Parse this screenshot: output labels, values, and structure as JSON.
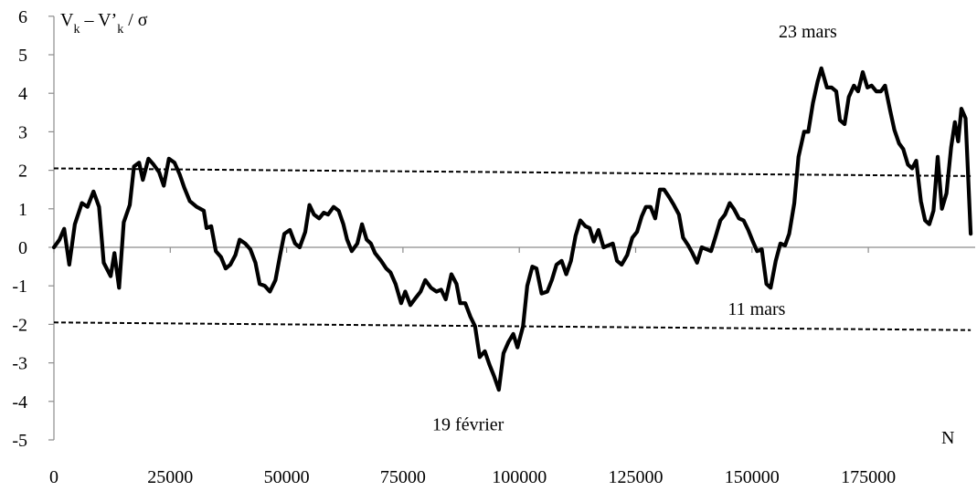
{
  "chart_data": {
    "type": "line",
    "title": "",
    "ylabel": {
      "main": "V",
      "sub1": "k",
      "mid": " – V’",
      "sub2": "k",
      "tail": " / σ"
    },
    "xlabel": "N",
    "xlim": [
      0,
      195000
    ],
    "ylim": [
      -5,
      6
    ],
    "xticks": [
      0,
      25000,
      50000,
      75000,
      100000,
      125000,
      150000,
      175000
    ],
    "yticks": [
      6,
      5,
      4,
      3,
      2,
      1,
      0,
      -1,
      -2,
      -3,
      -4,
      -5
    ],
    "grid": false,
    "series": [
      {
        "style": "solid",
        "color": "#000000",
        "points": [
          [
            0,
            0.0
          ],
          [
            1200,
            0.2
          ],
          [
            2200,
            0.48
          ],
          [
            3300,
            -0.45
          ],
          [
            4500,
            0.6
          ],
          [
            6000,
            1.15
          ],
          [
            7200,
            1.05
          ],
          [
            8500,
            1.45
          ],
          [
            9700,
            1.05
          ],
          [
            10700,
            -0.4
          ],
          [
            12200,
            -0.75
          ],
          [
            13000,
            -0.15
          ],
          [
            14000,
            -1.05
          ],
          [
            15000,
            0.65
          ],
          [
            16300,
            1.1
          ],
          [
            17200,
            2.1
          ],
          [
            18300,
            2.2
          ],
          [
            19100,
            1.75
          ],
          [
            20300,
            2.3
          ],
          [
            21400,
            2.15
          ],
          [
            22600,
            1.95
          ],
          [
            23600,
            1.6
          ],
          [
            24700,
            2.3
          ],
          [
            25900,
            2.2
          ],
          [
            27000,
            1.9
          ],
          [
            28000,
            1.55
          ],
          [
            29200,
            1.2
          ],
          [
            30700,
            1.05
          ],
          [
            32200,
            0.95
          ],
          [
            32800,
            0.5
          ],
          [
            33800,
            0.55
          ],
          [
            34800,
            -0.1
          ],
          [
            35900,
            -0.25
          ],
          [
            36900,
            -0.55
          ],
          [
            37900,
            -0.45
          ],
          [
            39000,
            -0.2
          ],
          [
            39900,
            0.2
          ],
          [
            41100,
            0.1
          ],
          [
            42200,
            -0.05
          ],
          [
            43300,
            -0.4
          ],
          [
            44200,
            -0.95
          ],
          [
            45300,
            -1.0
          ],
          [
            46400,
            -1.15
          ],
          [
            47600,
            -0.85
          ],
          [
            48600,
            -0.2
          ],
          [
            49500,
            0.35
          ],
          [
            50700,
            0.45
          ],
          [
            51800,
            0.1
          ],
          [
            52800,
            0.0
          ],
          [
            54000,
            0.4
          ],
          [
            54900,
            1.1
          ],
          [
            55900,
            0.85
          ],
          [
            57000,
            0.75
          ],
          [
            58000,
            0.9
          ],
          [
            58900,
            0.85
          ],
          [
            60100,
            1.05
          ],
          [
            61200,
            0.95
          ],
          [
            62200,
            0.6
          ],
          [
            63000,
            0.2
          ],
          [
            64000,
            -0.1
          ],
          [
            65200,
            0.1
          ],
          [
            66200,
            0.6
          ],
          [
            67200,
            0.2
          ],
          [
            68100,
            0.1
          ],
          [
            69000,
            -0.15
          ],
          [
            70300,
            -0.35
          ],
          [
            71400,
            -0.55
          ],
          [
            72300,
            -0.65
          ],
          [
            73400,
            -0.95
          ],
          [
            74600,
            -1.45
          ],
          [
            75500,
            -1.15
          ],
          [
            76600,
            -1.5
          ],
          [
            77800,
            -1.3
          ],
          [
            78800,
            -1.15
          ],
          [
            79800,
            -0.85
          ],
          [
            81000,
            -1.05
          ],
          [
            82200,
            -1.15
          ],
          [
            83200,
            -1.1
          ],
          [
            84200,
            -1.35
          ],
          [
            85400,
            -0.7
          ],
          [
            86500,
            -0.95
          ],
          [
            87300,
            -1.45
          ],
          [
            88400,
            -1.45
          ],
          [
            89500,
            -1.8
          ],
          [
            90500,
            -2.05
          ],
          [
            91500,
            -2.85
          ],
          [
            92600,
            -2.7
          ],
          [
            93600,
            -3.05
          ],
          [
            94600,
            -3.35
          ],
          [
            95600,
            -3.7
          ],
          [
            96600,
            -2.75
          ],
          [
            97700,
            -2.45
          ],
          [
            98700,
            -2.25
          ],
          [
            99600,
            -2.6
          ],
          [
            100800,
            -2.05
          ],
          [
            101700,
            -1.0
          ],
          [
            102800,
            -0.5
          ],
          [
            103700,
            -0.55
          ],
          [
            104800,
            -1.2
          ],
          [
            106000,
            -1.15
          ],
          [
            107000,
            -0.85
          ],
          [
            108000,
            -0.45
          ],
          [
            109100,
            -0.35
          ],
          [
            110100,
            -0.7
          ],
          [
            111100,
            -0.35
          ],
          [
            112100,
            0.3
          ],
          [
            113100,
            0.7
          ],
          [
            114200,
            0.55
          ],
          [
            115100,
            0.5
          ],
          [
            116000,
            0.15
          ],
          [
            117000,
            0.45
          ],
          [
            118100,
            0.0
          ],
          [
            119100,
            0.05
          ],
          [
            120100,
            0.1
          ],
          [
            121000,
            -0.35
          ],
          [
            122000,
            -0.45
          ],
          [
            123200,
            -0.2
          ],
          [
            124300,
            0.25
          ],
          [
            125300,
            0.4
          ],
          [
            126300,
            0.8
          ],
          [
            127200,
            1.05
          ],
          [
            128200,
            1.05
          ],
          [
            129200,
            0.75
          ],
          [
            130200,
            1.5
          ],
          [
            131100,
            1.5
          ],
          [
            132200,
            1.3
          ],
          [
            133200,
            1.1
          ],
          [
            134300,
            0.85
          ],
          [
            135200,
            0.25
          ],
          [
            136300,
            0.05
          ],
          [
            137200,
            -0.15
          ],
          [
            138200,
            -0.4
          ],
          [
            139200,
            0.0
          ],
          [
            140200,
            -0.05
          ],
          [
            141200,
            -0.1
          ],
          [
            142100,
            0.25
          ],
          [
            143200,
            0.7
          ],
          [
            144200,
            0.85
          ],
          [
            145200,
            1.15
          ],
          [
            146100,
            1.0
          ],
          [
            147200,
            0.75
          ],
          [
            148200,
            0.7
          ],
          [
            149200,
            0.45
          ],
          [
            150200,
            0.15
          ],
          [
            151100,
            -0.1
          ],
          [
            152100,
            -0.05
          ],
          [
            153100,
            -0.95
          ],
          [
            154000,
            -1.05
          ],
          [
            155100,
            -0.35
          ],
          [
            156100,
            0.1
          ],
          [
            157100,
            0.05
          ],
          [
            158000,
            0.35
          ],
          [
            159100,
            1.15
          ],
          [
            160000,
            2.35
          ],
          [
            161200,
            3.0
          ],
          [
            162100,
            3.0
          ],
          [
            163100,
            3.75
          ],
          [
            164100,
            4.3
          ],
          [
            164900,
            4.65
          ],
          [
            166100,
            4.15
          ],
          [
            167100,
            4.15
          ],
          [
            168100,
            4.05
          ],
          [
            168900,
            3.3
          ],
          [
            169900,
            3.2
          ],
          [
            170800,
            3.9
          ],
          [
            171900,
            4.2
          ],
          [
            172800,
            4.05
          ],
          [
            173800,
            4.55
          ],
          [
            174800,
            4.15
          ],
          [
            175700,
            4.2
          ],
          [
            176700,
            4.05
          ],
          [
            177700,
            4.05
          ],
          [
            178600,
            4.2
          ],
          [
            179700,
            3.55
          ],
          [
            180600,
            3.05
          ],
          [
            181600,
            2.7
          ],
          [
            182500,
            2.55
          ],
          [
            183500,
            2.15
          ],
          [
            184400,
            2.05
          ],
          [
            185300,
            2.25
          ],
          [
            186300,
            1.2
          ],
          [
            187200,
            0.7
          ],
          [
            188100,
            0.6
          ],
          [
            189000,
            0.95
          ],
          [
            189900,
            2.35
          ],
          [
            190800,
            1.0
          ],
          [
            191800,
            1.4
          ],
          [
            192800,
            2.6
          ],
          [
            193600,
            3.25
          ],
          [
            194300,
            2.75
          ],
          [
            195000,
            3.6
          ],
          [
            195900,
            3.35
          ],
          [
            197000,
            0.35
          ]
        ]
      },
      {
        "style": "dashed",
        "color": "#000000",
        "points": [
          [
            0,
            2.05
          ],
          [
            197000,
            1.85
          ]
        ]
      },
      {
        "style": "dashed",
        "color": "#000000",
        "points": [
          [
            0,
            -1.95
          ],
          [
            197000,
            -2.15
          ]
        ]
      }
    ],
    "annotations": [
      {
        "text": "23 mars",
        "x": 162000,
        "y": 5.45
      },
      {
        "text": "11 mars",
        "x": 151000,
        "y": -1.75
      },
      {
        "text": "19 février",
        "x": 89000,
        "y": -4.75
      }
    ]
  }
}
